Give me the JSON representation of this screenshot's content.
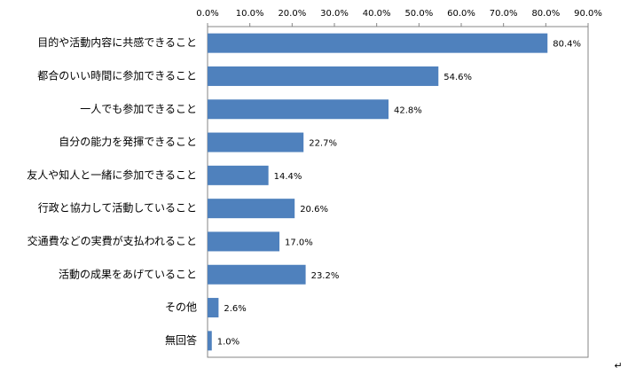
{
  "chart_data": {
    "type": "bar",
    "orientation": "horizontal",
    "categories": [
      "目的や活動内容に共感できること",
      "都合のいい時間に参加できること",
      "一人でも参加できること",
      "自分の能力を発揮できること",
      "友人や知人と一緒に参加できること",
      "行政と協力して活動していること",
      "交通費などの実費が支払われること",
      "活動の成果をあげていること",
      "その他",
      "無回答"
    ],
    "values": [
      80.4,
      54.6,
      42.8,
      22.7,
      14.4,
      20.6,
      17.0,
      23.2,
      2.6,
      1.0
    ],
    "value_labels": [
      "80.4%",
      "54.6%",
      "42.8%",
      "22.7%",
      "14.4%",
      "20.6%",
      "17.0%",
      "23.2%",
      "2.6%",
      "1.0%"
    ],
    "color": "#4f81bd",
    "xlim": [
      0,
      90
    ],
    "xticks": [
      {
        "value": 0,
        "label": "0.0%"
      },
      {
        "value": 10,
        "label": "10.0%"
      },
      {
        "value": 20,
        "label": "20.0%"
      },
      {
        "value": 30,
        "label": "30.0%"
      },
      {
        "value": 40,
        "label": "40.0%"
      },
      {
        "value": 50,
        "label": "50.0%"
      },
      {
        "value": 60,
        "label": "60.0%"
      },
      {
        "value": 70,
        "label": "70.0%"
      },
      {
        "value": 80,
        "label": "80.0%"
      },
      {
        "value": 90,
        "label": "90.0%"
      }
    ],
    "grid": false
  },
  "return_mark": "↵"
}
